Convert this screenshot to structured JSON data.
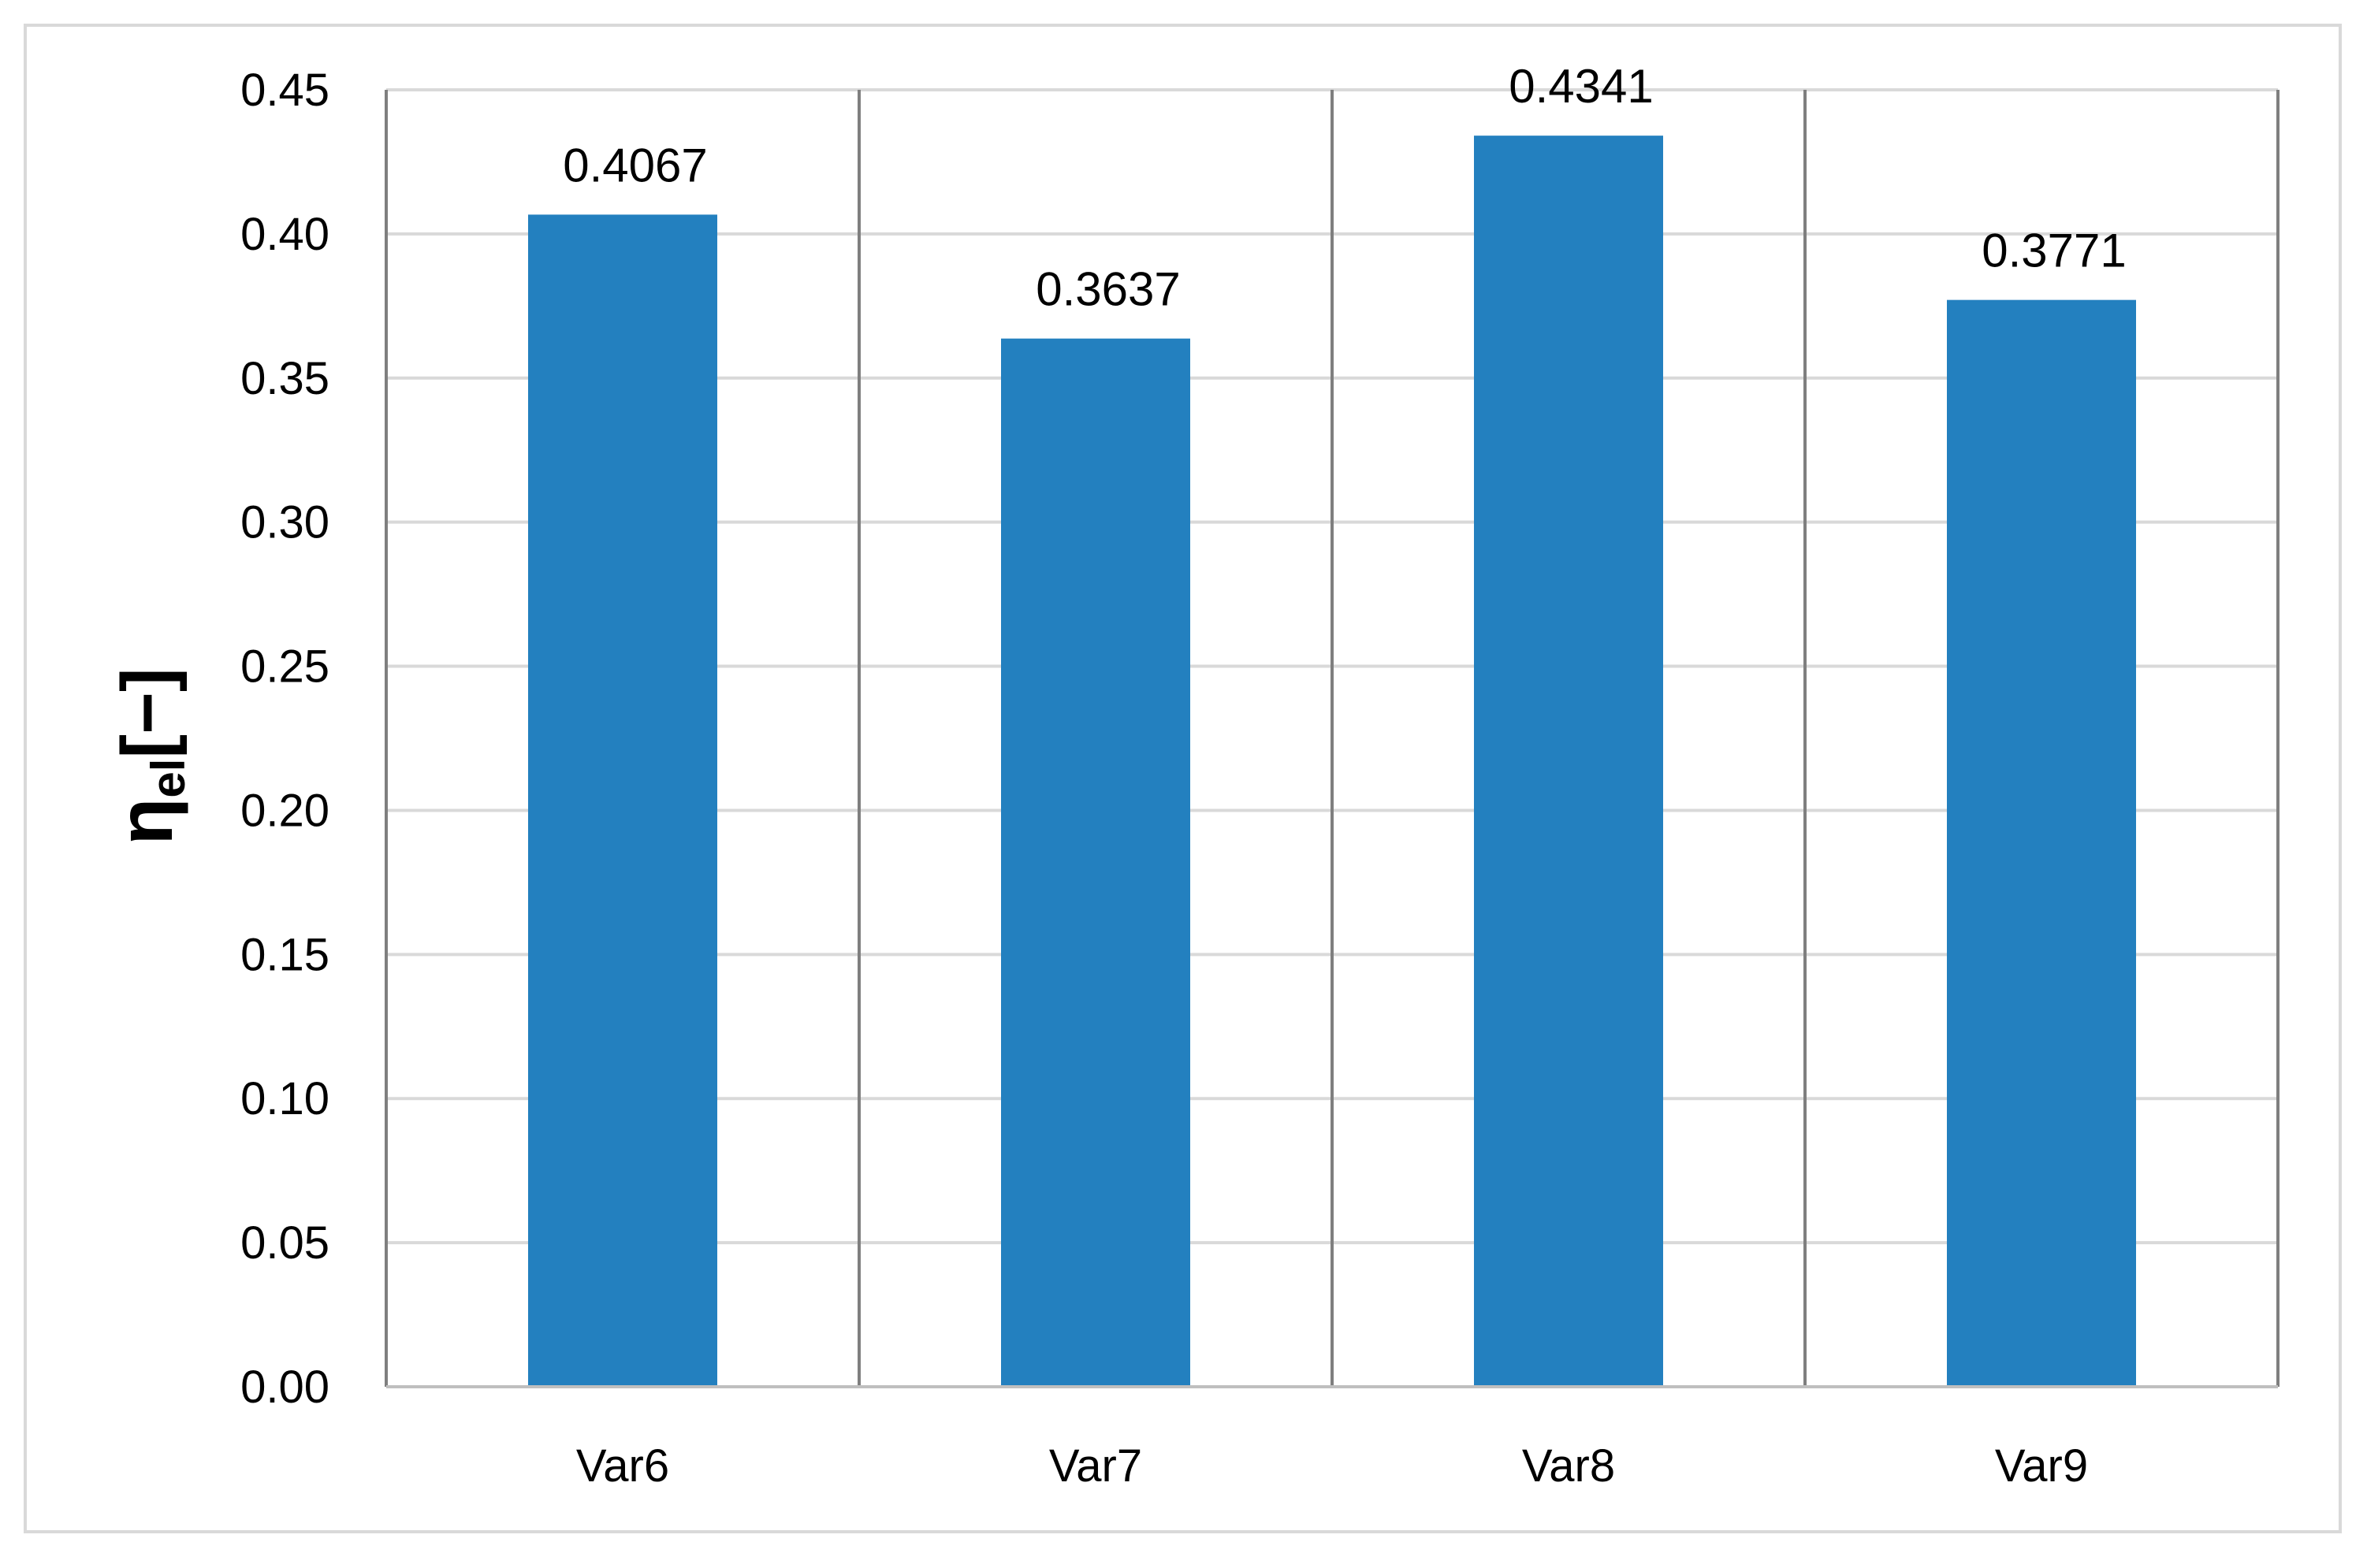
{
  "chart_data": {
    "type": "bar",
    "categories": [
      "Var6",
      "Var7",
      "Var8",
      "Var9"
    ],
    "values": [
      0.4067,
      0.3637,
      0.4341,
      0.3771
    ],
    "data_labels": [
      "0.4067",
      "0.3637",
      "0.4341",
      "0.3771"
    ],
    "ylabel_symbol": "η",
    "ylabel_subscript": "el",
    "ylabel_unit": "[−]",
    "ylim": [
      0,
      0.45
    ],
    "yticks": [
      "0.00",
      "0.05",
      "0.10",
      "0.15",
      "0.20",
      "0.25",
      "0.30",
      "0.35",
      "0.40",
      "0.45"
    ],
    "ytick_values": [
      0,
      0.05,
      0.1,
      0.15,
      0.2,
      0.25,
      0.3,
      0.35,
      0.4,
      0.45
    ],
    "grid": true,
    "bar_color": "#2380bf",
    "grid_color": "#d9d9d9",
    "separator_color": "#7f7f7f",
    "legend": "none"
  }
}
